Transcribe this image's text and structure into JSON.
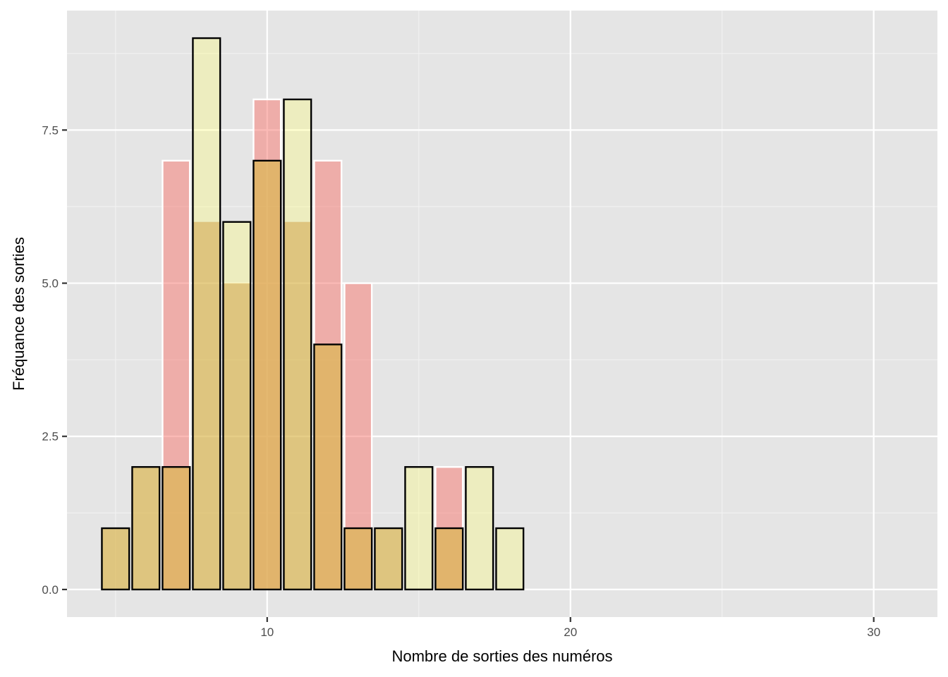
{
  "chart_data": {
    "type": "bar",
    "xlabel": "Nombre de sorties des numéros",
    "ylabel": "Fréquance des sorties",
    "xlim": [
      3.4,
      32.1
    ],
    "ylim": [
      -0.45,
      9.45
    ],
    "x_ticks": [
      10,
      20,
      30
    ],
    "x_tick_labels": [
      "10",
      "20",
      "30"
    ],
    "x_minor_ticks": [
      5,
      15,
      25
    ],
    "y_ticks": [
      0,
      2.5,
      5,
      7.5
    ],
    "y_tick_labels": [
      "0.0",
      "2.5",
      "5.0",
      "7.5"
    ],
    "y_minor_ticks": [
      1.25,
      3.75,
      6.25,
      8.75
    ],
    "grid": true,
    "legend": "none",
    "bar_width": 0.9,
    "series": [
      {
        "style": "outline-white",
        "fill": "#f8766d",
        "stroke": "#ffffff",
        "opacity": 0.5,
        "x": [
          7,
          10,
          12,
          13,
          16
        ],
        "values": [
          7,
          8,
          7,
          5,
          2
        ]
      },
      {
        "style": "outline-black",
        "fill": "#ffff66",
        "stroke": "#000000",
        "opacity": 0.3,
        "x": [
          5,
          6,
          7,
          8,
          9,
          10,
          11,
          12,
          13,
          14,
          15,
          16,
          17,
          18
        ],
        "values": [
          1,
          2,
          2,
          9,
          6,
          7,
          8,
          4,
          1,
          1,
          2,
          1,
          2,
          1
        ]
      },
      {
        "style": "overlap",
        "fill": "#c08040",
        "stroke": "none",
        "opacity": 0.55,
        "x": [
          5,
          6,
          7,
          8,
          9,
          10,
          11,
          12,
          13,
          14,
          16
        ],
        "values": [
          1,
          2,
          2,
          6,
          5,
          7,
          6,
          4,
          1,
          1,
          1
        ]
      }
    ],
    "colors": {
      "panel": "#e5e5e5",
      "grid_major": "#ffffff",
      "grid_minor": "#f2f2f2",
      "tick": "#333333",
      "tick_label": "#4d4d4d"
    }
  }
}
